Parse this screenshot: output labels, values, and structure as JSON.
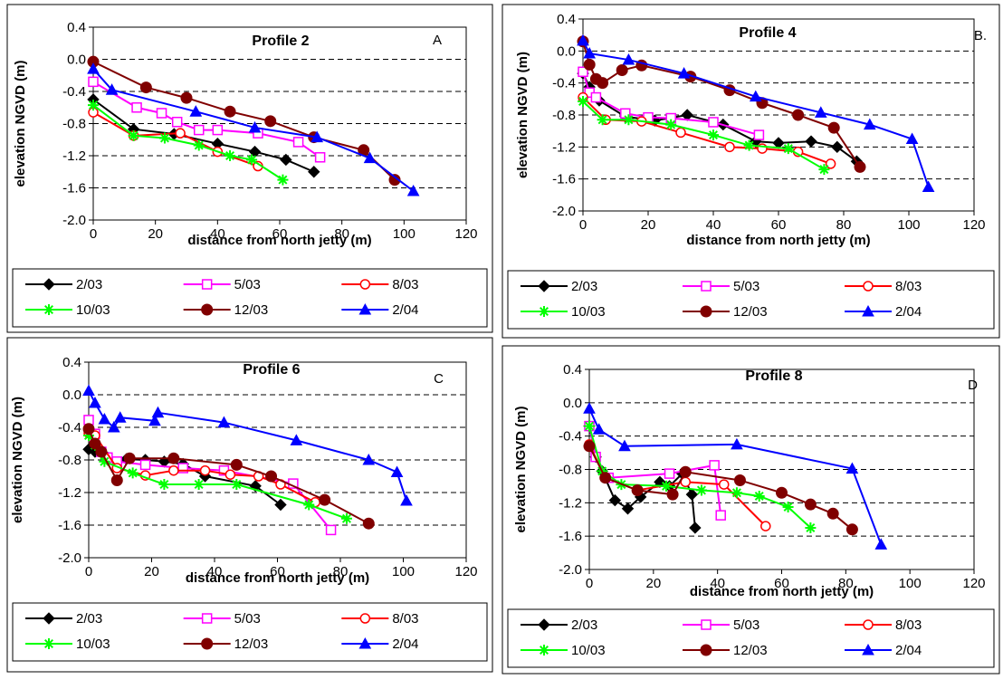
{
  "chart_data": [
    {
      "type": "line",
      "title": "Profile 2",
      "panel_label": "A",
      "xlabel": "distance from north jetty (m)",
      "ylabel": "elevation NGVD (m)",
      "xlim": [
        0,
        120
      ],
      "ylim": [
        -2.0,
        0.4
      ],
      "xticks": [
        "0",
        "20",
        "40",
        "60",
        "80",
        "100",
        "120"
      ],
      "yticks": [
        "0.4",
        "0.0",
        "-0.4",
        "-0.8",
        "-1.2",
        "-1.6",
        "-2.0"
      ],
      "series": [
        {
          "name": "2/03",
          "color": "#000000",
          "marker": "diamond",
          "x": [
            0,
            13,
            26,
            40,
            52,
            62,
            71
          ],
          "y": [
            -0.5,
            -0.87,
            -0.93,
            -1.05,
            -1.15,
            -1.25,
            -1.4
          ]
        },
        {
          "name": "5/03",
          "color": "#ff00ff",
          "marker": "square-open",
          "x": [
            0,
            14,
            22,
            27,
            34,
            40,
            53,
            66,
            73
          ],
          "y": [
            -0.28,
            -0.6,
            -0.67,
            -0.78,
            -0.88,
            -0.88,
            -0.92,
            -1.03,
            -1.22
          ]
        },
        {
          "name": "8/03",
          "color": "#ff0000",
          "marker": "circle-open",
          "x": [
            0,
            13,
            28,
            40,
            53
          ],
          "y": [
            -0.66,
            -0.95,
            -0.92,
            -1.15,
            -1.33
          ]
        },
        {
          "name": "10/03",
          "color": "#00ff00",
          "marker": "star",
          "x": [
            0,
            13,
            23,
            34,
            44,
            51,
            61
          ],
          "y": [
            -0.57,
            -0.95,
            -0.98,
            -1.07,
            -1.2,
            -1.25,
            -1.5
          ]
        },
        {
          "name": "12/03",
          "color": "#800000",
          "marker": "circle",
          "x": [
            0,
            17,
            30,
            44,
            57,
            71,
            87,
            97
          ],
          "y": [
            -0.03,
            -0.35,
            -0.48,
            -0.65,
            -0.77,
            -0.97,
            -1.13,
            -1.5
          ]
        },
        {
          "name": "2/04",
          "color": "#0000ff",
          "marker": "triangle",
          "x": [
            0,
            6,
            33,
            52,
            72,
            89,
            103
          ],
          "y": [
            -0.12,
            -0.38,
            -0.65,
            -0.85,
            -0.97,
            -1.23,
            -1.64
          ]
        }
      ]
    },
    {
      "type": "line",
      "title": "Profile 4",
      "panel_label": "B.",
      "xlabel": "distance from north jetty (m)",
      "ylabel": "elevation NGVD (m)",
      "xlim": [
        0,
        120
      ],
      "ylim": [
        -2.0,
        0.4
      ],
      "xticks": [
        "0",
        "20",
        "40",
        "60",
        "80",
        "100",
        "120"
      ],
      "yticks": [
        "0.4",
        "0.0",
        "-0.4",
        "-0.8",
        "-1.2",
        "-1.6",
        "-2.0"
      ],
      "series": [
        {
          "name": "2/03",
          "color": "#000000",
          "marker": "diamond",
          "x": [
            0,
            2,
            5,
            13,
            22,
            32,
            43,
            53,
            60,
            70,
            78,
            84
          ],
          "y": [
            -0.28,
            -0.45,
            -0.62,
            -0.82,
            -0.87,
            -0.8,
            -0.92,
            -1.13,
            -1.15,
            -1.13,
            -1.2,
            -1.38
          ]
        },
        {
          "name": "5/03",
          "color": "#ff00ff",
          "marker": "square-open",
          "x": [
            0,
            2,
            4,
            13,
            20,
            27,
            40,
            54
          ],
          "y": [
            -0.26,
            -0.52,
            -0.58,
            -0.78,
            -0.83,
            -0.84,
            -0.89,
            -1.05
          ]
        },
        {
          "name": "8/03",
          "color": "#ff0000",
          "marker": "circle-open",
          "x": [
            0,
            7,
            18,
            30,
            45,
            55,
            66,
            76
          ],
          "y": [
            -0.58,
            -0.86,
            -0.88,
            -1.02,
            -1.2,
            -1.22,
            -1.26,
            -1.41
          ]
        },
        {
          "name": "10/03",
          "color": "#00ff00",
          "marker": "star",
          "x": [
            0,
            6,
            14,
            27,
            40,
            51,
            63,
            74
          ],
          "y": [
            -0.63,
            -0.86,
            -0.86,
            -0.92,
            -1.05,
            -1.18,
            -1.22,
            -1.48
          ]
        },
        {
          "name": "12/03",
          "color": "#800000",
          "marker": "circle",
          "x": [
            0,
            2,
            4,
            6,
            12,
            18,
            33,
            45,
            55,
            66,
            77,
            85
          ],
          "y": [
            0.12,
            -0.17,
            -0.35,
            -0.4,
            -0.24,
            -0.18,
            -0.32,
            -0.49,
            -0.65,
            -0.8,
            -0.96,
            -1.45
          ]
        },
        {
          "name": "2/04",
          "color": "#0000ff",
          "marker": "triangle",
          "x": [
            0,
            2,
            14,
            31,
            53,
            73,
            88,
            101,
            106
          ],
          "y": [
            0.13,
            -0.03,
            -0.11,
            -0.28,
            -0.57,
            -0.77,
            -0.92,
            -1.1,
            -1.7
          ]
        }
      ]
    },
    {
      "type": "line",
      "title": "Profile 6",
      "panel_label": "C",
      "xlabel": "distance from north jetty (m)",
      "ylabel": "elevation NGVD (m)",
      "xlim": [
        0,
        120
      ],
      "ylim": [
        -2.0,
        0.4
      ],
      "xticks": [
        "0",
        "20",
        "40",
        "60",
        "80",
        "100",
        "120"
      ],
      "yticks": [
        "0.4",
        "0.0",
        "-0.4",
        "-0.8",
        "-1.2",
        "-1.6",
        "-2.0"
      ],
      "series": [
        {
          "name": "2/03",
          "color": "#000000",
          "marker": "diamond",
          "x": [
            0,
            2,
            6,
            12,
            18,
            24,
            30,
            37,
            53,
            61
          ],
          "y": [
            -0.67,
            -0.7,
            -0.77,
            -0.79,
            -0.8,
            -0.82,
            -0.85,
            -1.0,
            -1.12,
            -1.35
          ]
        },
        {
          "name": "5/03",
          "color": "#ff00ff",
          "marker": "square-open",
          "x": [
            0,
            2,
            4,
            6,
            9,
            18,
            30,
            43,
            65,
            77
          ],
          "y": [
            -0.31,
            -0.48,
            -0.7,
            -0.77,
            -0.82,
            -0.86,
            -0.9,
            -0.93,
            -1.09,
            -1.66
          ]
        },
        {
          "name": "8/03",
          "color": "#ff0000",
          "marker": "circle-open",
          "x": [
            0,
            2,
            9,
            18,
            27,
            37,
            45,
            54,
            61,
            72
          ],
          "y": [
            -0.47,
            -0.5,
            -0.9,
            -0.99,
            -0.93,
            -0.93,
            -0.98,
            -1.0,
            -1.1,
            -1.32
          ]
        },
        {
          "name": "10/03",
          "color": "#00ff00",
          "marker": "star",
          "x": [
            0,
            2,
            5,
            14,
            24,
            35,
            47,
            70,
            82
          ],
          "y": [
            -0.5,
            -0.62,
            -0.82,
            -0.96,
            -1.1,
            -1.1,
            -1.1,
            -1.35,
            -1.52
          ]
        },
        {
          "name": "12/03",
          "color": "#800000",
          "marker": "circle",
          "x": [
            0,
            2,
            4,
            9,
            13,
            27,
            47,
            58,
            75,
            89
          ],
          "y": [
            -0.42,
            -0.6,
            -0.7,
            -1.05,
            -0.78,
            -0.78,
            -0.86,
            -1.0,
            -1.29,
            -1.58
          ]
        },
        {
          "name": "2/04",
          "color": "#0000ff",
          "marker": "triangle",
          "x": [
            0,
            2,
            5,
            8,
            10,
            21,
            22,
            43,
            66,
            89,
            98,
            101
          ],
          "y": [
            0.05,
            -0.1,
            -0.3,
            -0.4,
            -0.28,
            -0.32,
            -0.22,
            -0.34,
            -0.56,
            -0.8,
            -0.95,
            -1.3
          ]
        }
      ]
    },
    {
      "type": "line",
      "title": "Profile 8",
      "panel_label": "D",
      "xlabel": "distance from north jetty (m)",
      "ylabel": "elevation NGVD (m)",
      "xlim": [
        0,
        120
      ],
      "ylim": [
        -2.0,
        0.4
      ],
      "xticks": [
        "0",
        "20",
        "40",
        "60",
        "80",
        "100",
        "120"
      ],
      "yticks": [
        "0.4",
        "0.0",
        "-0.4",
        "-0.8",
        "-1.2",
        "-1.6",
        "-2.0"
      ],
      "series": [
        {
          "name": "2/03",
          "color": "#000000",
          "marker": "diamond",
          "x": [
            0,
            2,
            4,
            8,
            12,
            16,
            22,
            25,
            29,
            32,
            33
          ],
          "y": [
            -0.28,
            -0.65,
            -0.82,
            -1.17,
            -1.27,
            -1.13,
            -0.95,
            -1.0,
            -0.85,
            -1.1,
            -1.5
          ]
        },
        {
          "name": "5/03",
          "color": "#ff00ff",
          "marker": "square-open",
          "x": [
            0,
            2,
            6,
            25,
            39,
            41
          ],
          "y": [
            -0.28,
            -0.65,
            -0.9,
            -0.85,
            -0.75,
            -1.35
          ]
        },
        {
          "name": "8/03",
          "color": "#ff0000",
          "marker": "circle-open",
          "x": [
            0,
            5,
            15,
            30,
            42,
            55
          ],
          "y": [
            -0.5,
            -0.9,
            -1.05,
            -0.95,
            -0.98,
            -1.48
          ]
        },
        {
          "name": "10/03",
          "color": "#00ff00",
          "marker": "star",
          "x": [
            0,
            4,
            10,
            24,
            35,
            46,
            53,
            62,
            69
          ],
          "y": [
            -0.28,
            -0.82,
            -0.98,
            -1.0,
            -1.05,
            -1.08,
            -1.12,
            -1.25,
            -1.5
          ]
        },
        {
          "name": "12/03",
          "color": "#800000",
          "marker": "circle",
          "x": [
            0,
            5,
            15,
            26,
            30,
            47,
            60,
            69,
            76,
            82
          ],
          "y": [
            -0.52,
            -0.9,
            -1.05,
            -1.1,
            -0.83,
            -0.93,
            -1.08,
            -1.22,
            -1.33,
            -1.52
          ]
        },
        {
          "name": "2/04",
          "color": "#0000ff",
          "marker": "triangle",
          "x": [
            0,
            3,
            11,
            46,
            82,
            91
          ],
          "y": [
            -0.07,
            -0.32,
            -0.52,
            -0.5,
            -0.79,
            -1.7
          ]
        }
      ]
    }
  ]
}
